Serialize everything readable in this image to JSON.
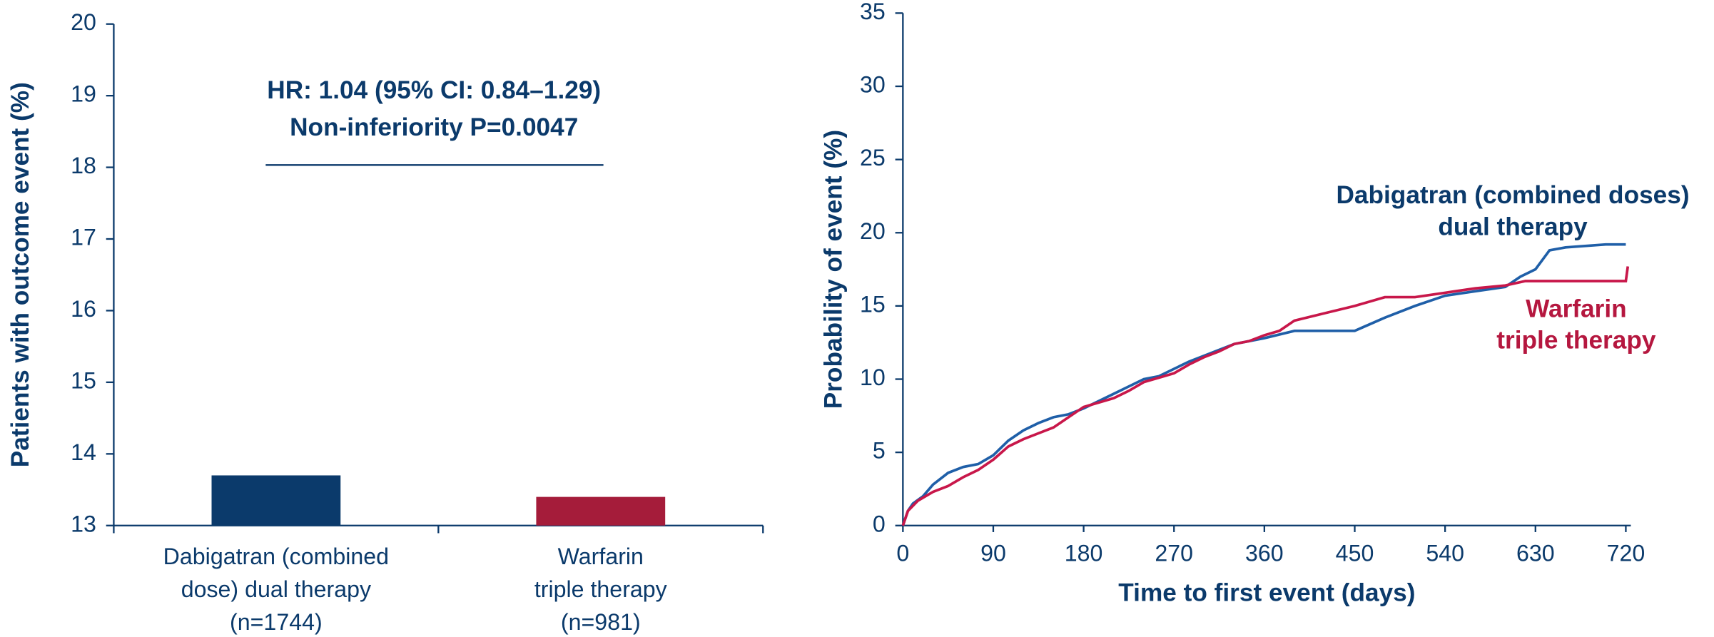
{
  "chart_data": [
    {
      "type": "bar",
      "y_label": "Patients with outcome event (%)",
      "annotations": [
        "HR: 1.04 (95% CI: 0.84–1.29)",
        "Non-inferiority P=0.0047"
      ],
      "categories": [
        [
          "Dabigatran (combined",
          "dose) dual therapy",
          "(n=1744)"
        ],
        [
          "Warfarin",
          "triple therapy",
          "(n=981)"
        ]
      ],
      "values": [
        13.7,
        13.4
      ],
      "colors": [
        "#0b3a6b",
        "#a51c3a"
      ],
      "ylim": [
        13,
        20
      ],
      "yticks": [
        13,
        14,
        15,
        16,
        17,
        18,
        19,
        20
      ]
    },
    {
      "type": "line",
      "x_label": "Time to first event (days)",
      "y_label": "Probability of event (%)",
      "xlim": [
        0,
        725
      ],
      "xticks": [
        0,
        90,
        180,
        270,
        360,
        450,
        540,
        630,
        720
      ],
      "ylim": [
        0,
        35
      ],
      "yticks": [
        0,
        5,
        10,
        15,
        20,
        25,
        30,
        35
      ],
      "series": [
        {
          "name": [
            "Dabigatran (combined doses)",
            "dual therapy"
          ],
          "color": "#1f5fa8",
          "label_color": "#0b3a6b",
          "x": [
            0,
            5,
            10,
            20,
            30,
            45,
            60,
            75,
            90,
            105,
            120,
            135,
            150,
            165,
            180,
            195,
            210,
            225,
            240,
            255,
            270,
            285,
            300,
            315,
            330,
            345,
            360,
            390,
            420,
            450,
            480,
            510,
            540,
            570,
            600,
            615,
            630,
            644,
            660,
            700,
            720
          ],
          "values": [
            0,
            1,
            1.5,
            2,
            2.8,
            3.6,
            4,
            4.2,
            4.8,
            5.8,
            6.5,
            7,
            7.4,
            7.6,
            8,
            8.5,
            9,
            9.5,
            10,
            10.2,
            10.7,
            11.2,
            11.6,
            12,
            12.4,
            12.6,
            12.8,
            13.3,
            13.3,
            13.3,
            14.2,
            15,
            15.7,
            16,
            16.3,
            17,
            17.5,
            18.8,
            19,
            19.2,
            19.2
          ]
        },
        {
          "name": [
            "Warfarin",
            "triple therapy"
          ],
          "color": "#c8174a",
          "label_color": "#b5173f",
          "x": [
            0,
            5,
            15,
            30,
            45,
            60,
            75,
            90,
            105,
            120,
            135,
            150,
            165,
            180,
            195,
            210,
            225,
            240,
            255,
            270,
            285,
            300,
            315,
            330,
            345,
            360,
            375,
            390,
            420,
            450,
            480,
            510,
            540,
            570,
            600,
            620,
            720,
            722
          ],
          "values": [
            0,
            1,
            1.7,
            2.3,
            2.7,
            3.3,
            3.8,
            4.5,
            5.4,
            5.9,
            6.3,
            6.7,
            7.4,
            8.1,
            8.4,
            8.7,
            9.2,
            9.8,
            10.1,
            10.4,
            11,
            11.5,
            11.9,
            12.4,
            12.6,
            13,
            13.3,
            14,
            14.5,
            15,
            15.6,
            15.6,
            15.9,
            16.2,
            16.4,
            16.7,
            16.7,
            17.7
          ]
        }
      ]
    }
  ]
}
